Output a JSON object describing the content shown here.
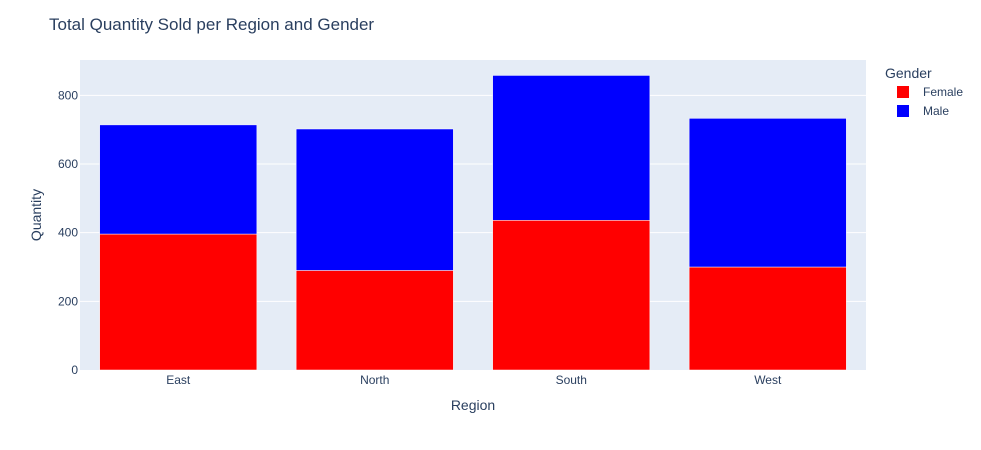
{
  "chart_data": {
    "type": "bar",
    "barmode": "stack",
    "title": "Total Quantity Sold per Region and Gender",
    "xlabel": "Region",
    "ylabel": "Quantity",
    "categories": [
      "East",
      "North",
      "South",
      "West"
    ],
    "series": [
      {
        "name": "Female",
        "color": "#ff0000",
        "values": [
          396,
          290,
          436,
          300
        ]
      },
      {
        "name": "Male",
        "color": "#0000ff",
        "values": [
          318,
          412,
          422,
          433
        ]
      }
    ],
    "ylim": [
      0,
      903
    ],
    "yticks": [
      0,
      200,
      400,
      600,
      800
    ],
    "grid": true,
    "legend": {
      "title": "Gender",
      "position": "top-right"
    },
    "plot_background": "#e5ecf6"
  }
}
